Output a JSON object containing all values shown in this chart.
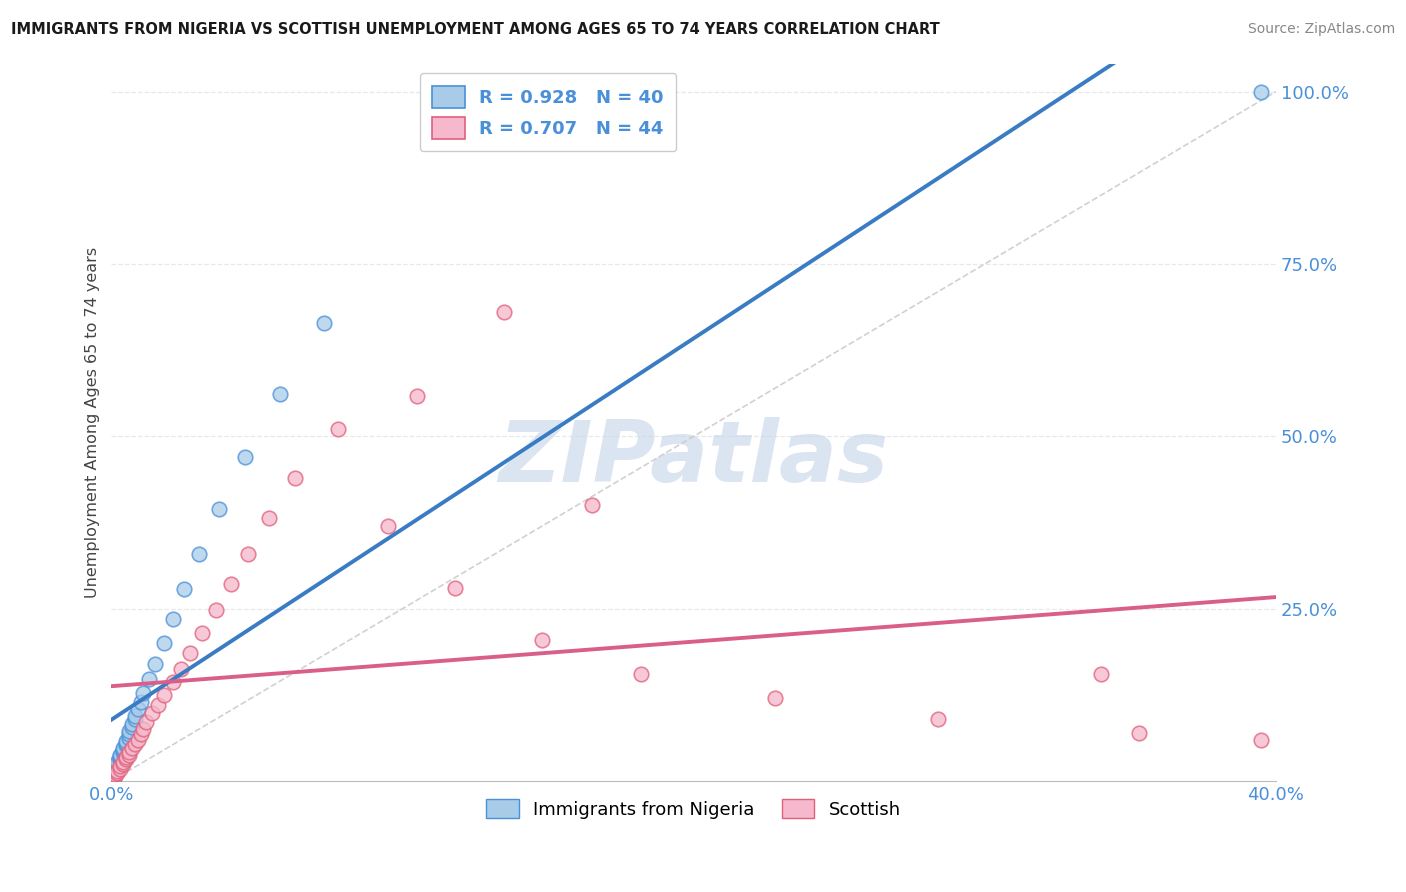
{
  "title": "IMMIGRANTS FROM NIGERIA VS SCOTTISH UNEMPLOYMENT AMONG AGES 65 TO 74 YEARS CORRELATION CHART",
  "source": "Source: ZipAtlas.com",
  "ylabel": "Unemployment Among Ages 65 to 74 years",
  "legend_blue_label": "Immigrants from Nigeria",
  "legend_pink_label": "Scottish",
  "R_blue": 0.928,
  "N_blue": 40,
  "R_pink": 0.707,
  "N_pink": 44,
  "blue_fill": "#a8cce8",
  "blue_edge": "#4a90d9",
  "pink_fill": "#f5b8cc",
  "pink_edge": "#e0607a",
  "blue_line": "#3a7cc4",
  "pink_line": "#d95f8a",
  "ref_line": "#cccccc",
  "watermark_color": "#c8d8ec",
  "tick_color": "#4a90d9",
  "grid_color": "#e8e8e8",
  "background": "#ffffff",
  "title_color": "#1a1a1a",
  "source_color": "#888888",
  "axis_label_color": "#444444",
  "blue_scatter_x": [
    0.001,
    0.001,
    0.001,
    0.001,
    0.002,
    0.002,
    0.002,
    0.002,
    0.002,
    0.003,
    0.003,
    0.003,
    0.003,
    0.004,
    0.004,
    0.004,
    0.005,
    0.005,
    0.005,
    0.006,
    0.006,
    0.006,
    0.007,
    0.007,
    0.008,
    0.008,
    0.009,
    0.01,
    0.011,
    0.013,
    0.015,
    0.018,
    0.021,
    0.025,
    0.03,
    0.037,
    0.046,
    0.058,
    0.073,
    0.395
  ],
  "blue_scatter_y": [
    0.005,
    0.01,
    0.012,
    0.015,
    0.018,
    0.02,
    0.022,
    0.025,
    0.028,
    0.03,
    0.033,
    0.036,
    0.038,
    0.042,
    0.045,
    0.048,
    0.052,
    0.055,
    0.058,
    0.063,
    0.068,
    0.072,
    0.078,
    0.083,
    0.09,
    0.095,
    0.105,
    0.115,
    0.128,
    0.148,
    0.17,
    0.2,
    0.235,
    0.278,
    0.33,
    0.395,
    0.47,
    0.562,
    0.665,
    1.0
  ],
  "pink_scatter_x": [
    0.001,
    0.001,
    0.001,
    0.002,
    0.002,
    0.003,
    0.003,
    0.004,
    0.004,
    0.005,
    0.005,
    0.006,
    0.006,
    0.007,
    0.008,
    0.009,
    0.01,
    0.011,
    0.012,
    0.014,
    0.016,
    0.018,
    0.021,
    0.024,
    0.027,
    0.031,
    0.036,
    0.041,
    0.047,
    0.054,
    0.063,
    0.078,
    0.095,
    0.118,
    0.148,
    0.182,
    0.228,
    0.284,
    0.353,
    0.395,
    0.105,
    0.135,
    0.165,
    0.34
  ],
  "pink_scatter_y": [
    0.005,
    0.008,
    0.01,
    0.012,
    0.015,
    0.018,
    0.022,
    0.025,
    0.028,
    0.032,
    0.035,
    0.038,
    0.042,
    0.048,
    0.054,
    0.06,
    0.068,
    0.076,
    0.086,
    0.098,
    0.11,
    0.125,
    0.143,
    0.163,
    0.186,
    0.214,
    0.248,
    0.286,
    0.33,
    0.381,
    0.44,
    0.51,
    0.37,
    0.28,
    0.205,
    0.155,
    0.12,
    0.09,
    0.07,
    0.06,
    0.558,
    0.68,
    0.4,
    0.155
  ],
  "xlim": [
    0.0,
    0.4
  ],
  "ylim": [
    0.0,
    1.04
  ],
  "ytick_vals": [
    0.0,
    0.25,
    0.5,
    0.75,
    1.0
  ],
  "ytick_labels": [
    "",
    "25.0%",
    "50.0%",
    "75.0%",
    "100.0%"
  ],
  "xtick_vals": [
    0.0,
    0.4
  ],
  "xtick_labels": [
    "0.0%",
    "40.0%"
  ]
}
